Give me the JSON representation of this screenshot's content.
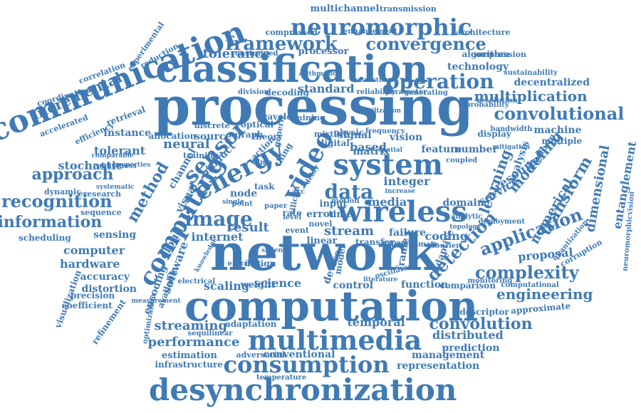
{
  "cloud": {
    "color": "#3f7ab5",
    "words": [
      {
        "text": "processing"
      },
      {
        "text": "network"
      },
      {
        "text": "computation"
      },
      {
        "text": "classification"
      },
      {
        "text": "communication"
      },
      {
        "text": "desynchronization"
      },
      {
        "text": "multimedia"
      },
      {
        "text": "consumption"
      },
      {
        "text": "wireless"
      },
      {
        "text": "system"
      },
      {
        "text": "energy"
      },
      {
        "text": "computing"
      },
      {
        "text": "neuromorphic"
      },
      {
        "text": "framework"
      },
      {
        "text": "convergence"
      },
      {
        "text": "operation"
      },
      {
        "text": "multiplication"
      },
      {
        "text": "convolutional"
      },
      {
        "text": "recognition"
      },
      {
        "text": "information"
      },
      {
        "text": "approach"
      },
      {
        "text": "sensor"
      },
      {
        "text": "image"
      },
      {
        "text": "data"
      },
      {
        "text": "application"
      },
      {
        "text": "complexity"
      },
      {
        "text": "engineering"
      },
      {
        "text": "convolution"
      },
      {
        "text": "streaming"
      },
      {
        "text": "performance"
      },
      {
        "text": "detection"
      },
      {
        "text": "learning"
      },
      {
        "text": "transform"
      },
      {
        "text": "incremental"
      },
      {
        "text": "video"
      },
      {
        "text": "method"
      },
      {
        "text": "neural"
      },
      {
        "text": "stream"
      },
      {
        "text": "science"
      },
      {
        "text": "media"
      },
      {
        "text": "result"
      },
      {
        "text": "scaling"
      },
      {
        "text": "internet"
      },
      {
        "text": "computer"
      },
      {
        "text": "hardware"
      },
      {
        "text": "scheduling"
      },
      {
        "text": "sensing"
      },
      {
        "text": "accuracy"
      },
      {
        "text": "distortion"
      },
      {
        "text": "precision"
      },
      {
        "text": "coefficient"
      },
      {
        "text": "refinement"
      },
      {
        "text": "tolerance"
      },
      {
        "text": "processor"
      },
      {
        "text": "standard"
      },
      {
        "text": "technology"
      },
      {
        "text": "algorithm"
      },
      {
        "text": "architecture"
      },
      {
        "text": "decentralized"
      },
      {
        "text": "modeling"
      },
      {
        "text": "service"
      },
      {
        "text": "resource"
      },
      {
        "text": "dimensional"
      },
      {
        "text": "entanglement"
      },
      {
        "text": "numerical"
      },
      {
        "text": "proposal"
      },
      {
        "text": "integer"
      },
      {
        "text": "domain"
      },
      {
        "text": "coding"
      },
      {
        "text": "failure"
      },
      {
        "text": "function"
      },
      {
        "text": "temporal"
      },
      {
        "text": "distributed"
      },
      {
        "text": "prediction"
      },
      {
        "text": "management"
      },
      {
        "text": "representation"
      },
      {
        "text": "conventional"
      },
      {
        "text": "adversarial"
      },
      {
        "text": "estimation"
      },
      {
        "text": "infrastructure"
      },
      {
        "text": "adaptation"
      },
      {
        "text": "temperature"
      },
      {
        "text": "descriptor"
      },
      {
        "text": "approximate"
      },
      {
        "text": "machine"
      },
      {
        "text": "multiple"
      },
      {
        "text": "display"
      },
      {
        "text": "bandwidth"
      },
      {
        "text": "platform"
      },
      {
        "text": "analysis"
      },
      {
        "text": "corruption"
      },
      {
        "text": "neuromorphicvision"
      },
      {
        "text": "multichannel"
      },
      {
        "text": "transmission"
      },
      {
        "text": "compressed"
      },
      {
        "text": "enhancement"
      },
      {
        "text": "constrained"
      },
      {
        "text": "compression"
      },
      {
        "text": "sustainability"
      },
      {
        "text": "decoding"
      },
      {
        "text": "division"
      },
      {
        "text": "mining"
      },
      {
        "text": "vision"
      },
      {
        "text": "signal"
      },
      {
        "text": "based"
      },
      {
        "text": "matrix"
      },
      {
        "text": "feature"
      },
      {
        "text": "number"
      },
      {
        "text": "error"
      },
      {
        "text": "input"
      },
      {
        "text": "time"
      },
      {
        "text": "linear"
      },
      {
        "text": "transfer"
      },
      {
        "text": "control"
      },
      {
        "text": "device"
      },
      {
        "text": "model"
      },
      {
        "text": "frame"
      },
      {
        "text": "node"
      },
      {
        "text": "rate"
      },
      {
        "text": "task"
      },
      {
        "text": "source"
      },
      {
        "text": "product"
      },
      {
        "text": "visual"
      },
      {
        "text": "cloud"
      },
      {
        "text": "software"
      },
      {
        "text": "encoding"
      },
      {
        "text": "available"
      },
      {
        "text": "optimization"
      },
      {
        "text": "sequilinear"
      },
      {
        "text": "sequence"
      },
      {
        "text": "dynamic"
      },
      {
        "text": "eresearch"
      },
      {
        "text": "stochastic"
      },
      {
        "text": "tolerant"
      },
      {
        "text": "instance"
      },
      {
        "text": "retrieval"
      },
      {
        "text": "efficient"
      },
      {
        "text": "efficiency"
      },
      {
        "text": "accelerated"
      },
      {
        "text": "coordination"
      },
      {
        "text": "correlation"
      },
      {
        "text": "reduction"
      },
      {
        "text": "experimental"
      },
      {
        "text": "visualization"
      },
      {
        "text": "channel"
      },
      {
        "text": "weight"
      },
      {
        "text": "electrical"
      },
      {
        "text": "design"
      },
      {
        "text": "adaptive"
      },
      {
        "text": "comparison"
      },
      {
        "text": "computational"
      },
      {
        "text": "monitoring"
      },
      {
        "text": "probability"
      },
      {
        "text": "resolution"
      },
      {
        "text": "generating"
      },
      {
        "text": "parameter"
      },
      {
        "text": "reliability"
      },
      {
        "text": "wavelet"
      },
      {
        "text": "optical"
      },
      {
        "text": "discrete"
      },
      {
        "text": "allocation"
      },
      {
        "text": "training"
      },
      {
        "text": "graph"
      },
      {
        "text": "action"
      },
      {
        "text": "theory"
      },
      {
        "text": "thing"
      },
      {
        "text": "tdma"
      },
      {
        "text": "paper"
      },
      {
        "text": "point"
      },
      {
        "text": "silicon"
      },
      {
        "text": "digital"
      },
      {
        "text": "mixture"
      },
      {
        "text": "physic"
      },
      {
        "text": "spatial"
      },
      {
        "text": "analytic"
      },
      {
        "text": "coupled"
      },
      {
        "text": "deployment"
      },
      {
        "text": "quantization"
      },
      {
        "text": "frequency"
      },
      {
        "text": "fourier"
      },
      {
        "text": "increase"
      },
      {
        "text": "motion"
      },
      {
        "text": "event"
      },
      {
        "text": "novel"
      },
      {
        "text": "oscillator"
      },
      {
        "text": "literature"
      },
      {
        "text": "expert"
      },
      {
        "text": "estimate"
      },
      {
        "text": "topology"
      },
      {
        "text": "generic"
      },
      {
        "text": "level"
      },
      {
        "text": "single"
      },
      {
        "text": "acc"
      },
      {
        "text": "delay"
      },
      {
        "text": "measurement"
      },
      {
        "text": "mitigation"
      },
      {
        "text": "robustness"
      },
      {
        "text": "systematic"
      },
      {
        "text": "comparable"
      },
      {
        "text": "properties"
      },
      {
        "text": "salient"
      },
      {
        "text": "knowledge"
      },
      {
        "text": "arithmetic"
      },
      {
        "text": "extraction"
      },
      {
        "text": "utilization"
      }
    ]
  }
}
